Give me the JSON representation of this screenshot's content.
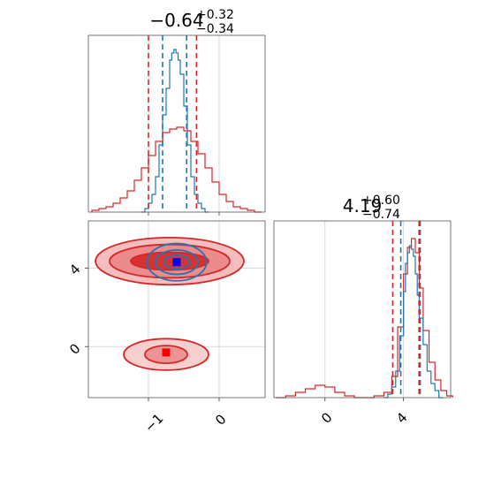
{
  "chart_data": {
    "type": "corner",
    "parameters": [
      {
        "title_main": "−0.64",
        "title_plus": "+0.32",
        "title_minus": "−0.34",
        "range": [
          -1.85,
          0.65
        ],
        "ticks": [
          -1,
          0
        ],
        "tick_labels": [
          "−1",
          "0"
        ]
      },
      {
        "title_main": "4.19",
        "title_plus": "+0.60",
        "title_minus": "−0.74",
        "range": [
          -2.6,
          6.4
        ],
        "ticks": [
          0,
          4
        ],
        "tick_labels": [
          "0",
          "4"
        ]
      }
    ],
    "series": [
      {
        "name": "blue",
        "color": "#1f77b4",
        "marker_color": "#0000ff",
        "quantiles_p1": [
          -0.8,
          -0.46
        ],
        "quantiles_p2": [
          3.86,
          4.85
        ],
        "point": [
          -0.6,
          4.3
        ],
        "hist_p1": {
          "x": [
            -1.1,
            -1.05,
            -1.0,
            -0.95,
            -0.9,
            -0.85,
            -0.8,
            -0.75,
            -0.7,
            -0.67,
            -0.64,
            -0.61,
            -0.58,
            -0.55,
            -0.5,
            -0.45,
            -0.4,
            -0.35,
            -0.3,
            -0.25,
            -0.2
          ],
          "y": [
            0.0,
            0.02,
            0.05,
            0.1,
            0.2,
            0.38,
            0.55,
            0.7,
            0.86,
            0.9,
            0.92,
            0.9,
            0.86,
            0.78,
            0.6,
            0.38,
            0.2,
            0.1,
            0.05,
            0.02,
            0.0
          ]
        },
        "hist_p2": {
          "x": [
            3.0,
            3.2,
            3.4,
            3.6,
            3.8,
            4.0,
            4.1,
            4.2,
            4.3,
            4.4,
            4.5,
            4.6,
            4.7,
            4.8,
            5.0,
            5.2,
            5.4,
            5.6,
            5.8
          ],
          "y": [
            0.0,
            0.02,
            0.06,
            0.15,
            0.35,
            0.6,
            0.76,
            0.82,
            0.86,
            0.84,
            0.8,
            0.7,
            0.58,
            0.45,
            0.3,
            0.15,
            0.08,
            0.04,
            0.0
          ]
        },
        "contours": [
          {
            "cx": -0.6,
            "cy": 4.3,
            "rx": 0.42,
            "ry": 0.95
          },
          {
            "cx": -0.6,
            "cy": 4.3,
            "rx": 0.3,
            "ry": 0.62
          },
          {
            "cx": -0.6,
            "cy": 4.3,
            "rx": 0.18,
            "ry": 0.35
          }
        ]
      },
      {
        "name": "red",
        "color": "#d62728",
        "marker_color": "#ff0000",
        "quantiles_p1": [
          -1.0,
          -0.32
        ],
        "quantiles_p2": [
          3.45,
          4.79
        ],
        "point": [
          -0.75,
          -0.3
        ],
        "hist_p1": {
          "x": [
            -1.8,
            -1.7,
            -1.6,
            -1.5,
            -1.4,
            -1.3,
            -1.2,
            -1.1,
            -1.0,
            -0.9,
            -0.8,
            -0.7,
            -0.6,
            -0.5,
            -0.4,
            -0.3,
            -0.2,
            -0.1,
            0.0,
            0.1,
            0.2,
            0.3,
            0.4,
            0.5
          ],
          "y": [
            0.01,
            0.02,
            0.03,
            0.05,
            0.08,
            0.12,
            0.18,
            0.25,
            0.32,
            0.4,
            0.45,
            0.47,
            0.48,
            0.46,
            0.4,
            0.33,
            0.25,
            0.17,
            0.1,
            0.06,
            0.03,
            0.02,
            0.01,
            0.0
          ]
        },
        "hist_p2": {
          "x": [
            -2.5,
            -2.0,
            -1.5,
            -1.0,
            -0.5,
            0.0,
            0.5,
            1.0,
            1.5,
            2.0,
            2.5,
            3.0,
            3.4,
            3.7,
            4.0,
            4.2,
            4.4,
            4.6,
            4.8,
            5.0,
            5.3,
            5.6,
            5.9,
            6.2
          ],
          "y": [
            0.0,
            0.01,
            0.03,
            0.05,
            0.07,
            0.06,
            0.03,
            0.01,
            0.0,
            0.0,
            0.01,
            0.03,
            0.12,
            0.4,
            0.7,
            0.85,
            0.9,
            0.82,
            0.62,
            0.38,
            0.2,
            0.1,
            0.04,
            0.01
          ]
        },
        "contours": [
          {
            "cx": -0.7,
            "cy": 4.35,
            "rx": 1.05,
            "ry": 1.2
          },
          {
            "cx": -0.7,
            "cy": 4.35,
            "rx": 0.85,
            "ry": 0.85
          },
          {
            "cx": -0.7,
            "cy": 4.35,
            "rx": 0.55,
            "ry": 0.45
          },
          {
            "cx": -0.75,
            "cy": -0.4,
            "rx": 0.6,
            "ry": 0.8
          },
          {
            "cx": -0.75,
            "cy": -0.4,
            "rx": 0.3,
            "ry": 0.45
          }
        ]
      }
    ],
    "grid": true
  }
}
